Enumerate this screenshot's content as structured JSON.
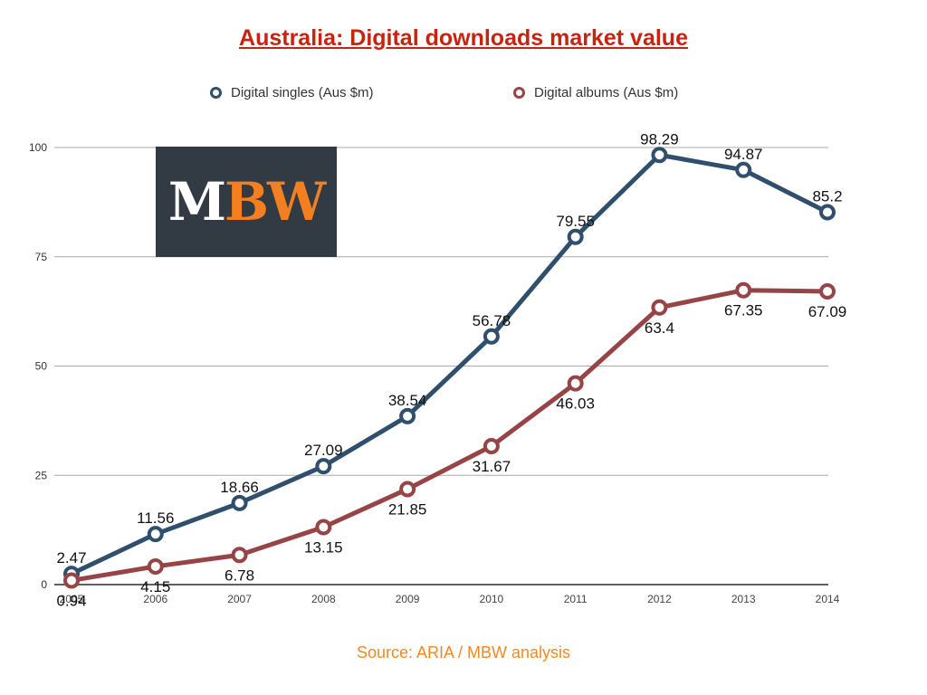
{
  "chart_data": {
    "type": "line",
    "title": "Australia: Digital downloads market value",
    "xlabel": "",
    "ylabel": "",
    "x": [
      "2005",
      "2006",
      "2007",
      "2008",
      "2009",
      "2010",
      "2011",
      "2012",
      "2013",
      "2014"
    ],
    "ylim": [
      0,
      100
    ],
    "yticks": [
      0,
      25,
      50,
      75,
      100
    ],
    "grid": true,
    "legend_position": "top",
    "series": [
      {
        "name": "Digital singles (Aus $m)",
        "color": "#2f4f6c",
        "values": [
          2.47,
          11.56,
          18.66,
          27.09,
          38.54,
          56.78,
          79.55,
          98.29,
          94.87,
          85.2
        ],
        "labels": [
          "2.47",
          "11.56",
          "18.66",
          "27.09",
          "38.54",
          "56.78",
          "79.55",
          "98.29",
          "94.87",
          "85.2"
        ]
      },
      {
        "name": "Digital albums (Aus $m)",
        "color": "#974446",
        "values": [
          0.94,
          4.15,
          6.78,
          13.15,
          21.85,
          31.67,
          46.03,
          63.4,
          67.35,
          67.09
        ],
        "labels": [
          "0.94",
          "4.15",
          "6.78",
          "13.15",
          "21.85",
          "31.67",
          "46.03",
          "63.4",
          "67.35",
          "67.09"
        ]
      }
    ],
    "source": "Source: ARIA / MBW analysis"
  },
  "logo": {
    "part1": "M",
    "part2": "BW"
  }
}
